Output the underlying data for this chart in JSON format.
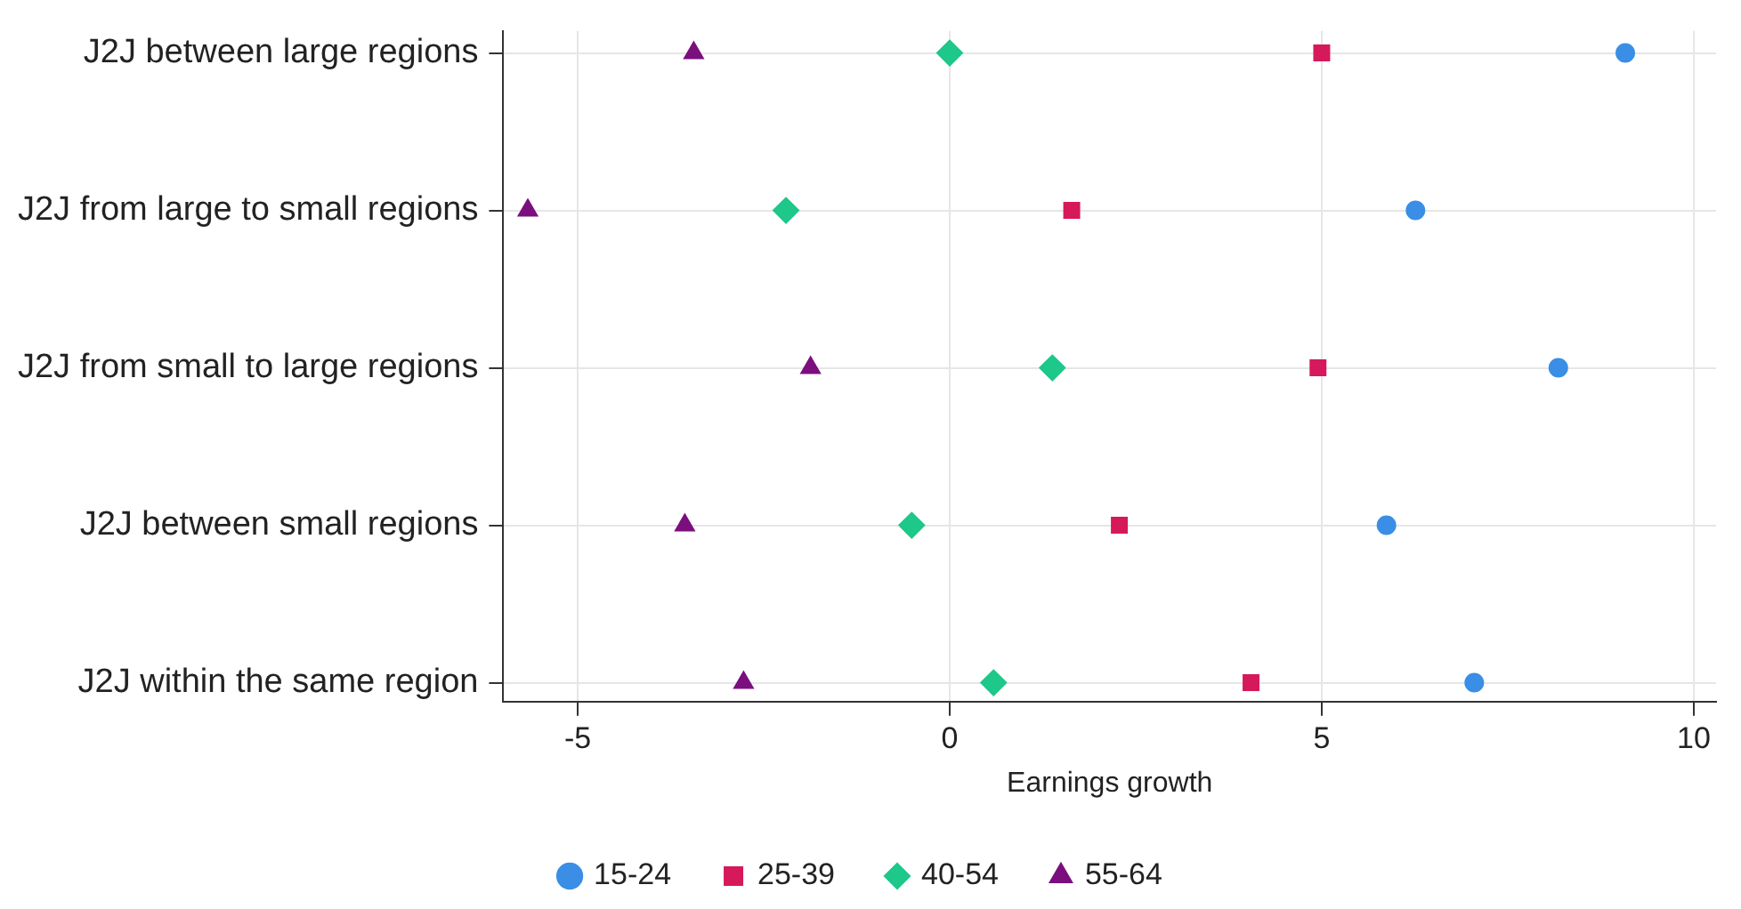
{
  "chart_data": {
    "type": "scatter",
    "orientation": "horizontal",
    "xlabel": "Earnings growth",
    "categories": [
      "J2J between large regions",
      "J2J from large to small regions",
      "J2J from small to large regions",
      "J2J between small regions",
      "J2J within the same region"
    ],
    "series": [
      {
        "name": "15-24",
        "color": "#3a8ee6",
        "marker": "circle",
        "values": [
          9.08,
          6.26,
          8.18,
          5.87,
          7.05
        ]
      },
      {
        "name": "25-39",
        "color": "#d6195b",
        "marker": "square",
        "values": [
          5.0,
          1.64,
          4.95,
          2.28,
          4.05
        ]
      },
      {
        "name": "40-54",
        "color": "#1ec78a",
        "marker": "diamond",
        "values": [
          0,
          -2.2,
          1.38,
          -0.51,
          0.59
        ]
      },
      {
        "name": "55-64",
        "color": "#7b0f7e",
        "marker": "triangle",
        "values": [
          -3.44,
          -5.67,
          -1.87,
          -3.56,
          -2.77
        ]
      }
    ],
    "xlim": [
      -6,
      10.3
    ],
    "xticks": [
      -5,
      0,
      5,
      10
    ],
    "grid": true,
    "legend": "bottom"
  }
}
